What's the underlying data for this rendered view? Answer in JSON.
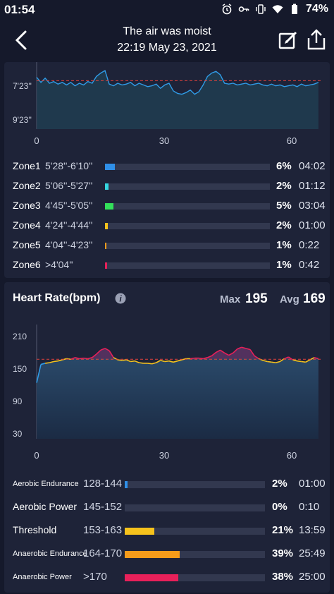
{
  "status_bar": {
    "time": "01:54",
    "battery": "74%",
    "icons": [
      "alarm-icon",
      "key-icon",
      "vibrate-icon",
      "wifi-icon",
      "battery-icon"
    ]
  },
  "header": {
    "title": "The air was moist",
    "datetime": "22:19 May 23, 2021"
  },
  "pace_chart": {
    "y_ticks": [
      "7'23''",
      "9'23''"
    ],
    "x_ticks": [
      "0",
      "30",
      "60"
    ],
    "color_line": "#2f9be6",
    "color_avg": "#e0423c",
    "chart_data": {
      "type": "area",
      "x_range": [
        0,
        67
      ],
      "x": [
        0,
        1,
        2,
        3,
        4,
        5,
        6,
        7,
        8,
        9,
        10,
        11,
        12,
        13,
        14,
        15,
        16,
        17,
        18,
        19,
        20,
        21,
        22,
        23,
        24,
        25,
        26,
        27,
        28,
        29,
        30,
        31,
        32,
        33,
        34,
        35,
        36,
        37,
        38,
        39,
        40,
        41,
        42,
        43,
        44,
        45,
        46,
        47,
        48,
        49,
        50,
        51,
        52,
        53,
        54,
        55,
        56,
        57,
        58,
        59,
        60,
        61,
        62,
        63,
        64,
        65,
        66
      ],
      "y": [
        6.3,
        6.9,
        6.4,
        7.0,
        6.8,
        7.1,
        6.9,
        7.2,
        6.9,
        7.3,
        7.0,
        7.2,
        6.8,
        7.0,
        6.2,
        5.8,
        5.5,
        7.1,
        7.3,
        7.0,
        7.2,
        7.1,
        6.9,
        7.3,
        7.0,
        7.2,
        7.4,
        7.3,
        7.1,
        7.6,
        7.2,
        7.0,
        7.9,
        8.2,
        8.3,
        8.1,
        7.8,
        8.3,
        8.0,
        7.2,
        6.2,
        5.8,
        5.6,
        6.0,
        7.0,
        7.1,
        7.0,
        7.2,
        7.1,
        7.0,
        7.2,
        7.1,
        7.0,
        7.2,
        7.3,
        7.1,
        7.3,
        7.2,
        7.4,
        7.3,
        7.2,
        7.4,
        7.1,
        7.3,
        7.2,
        7.1,
        6.9
      ],
      "avg": 6.7
    }
  },
  "pace_zones": [
    {
      "name": "Zone1",
      "range": "5'28''-6'10''",
      "pct": "6%",
      "pct_value": 6,
      "time": "04:02",
      "color": "#2f8fe8"
    },
    {
      "name": "Zone2",
      "range": "5'06''-5'27''",
      "pct": "2%",
      "pct_value": 2,
      "time": "01:12",
      "color": "#35d6e0"
    },
    {
      "name": "Zone3",
      "range": "4'45''-5'05''",
      "pct": "5%",
      "pct_value": 5,
      "time": "03:04",
      "color": "#33e05a"
    },
    {
      "name": "Zone4",
      "range": "4'24''-4'44''",
      "pct": "2%",
      "pct_value": 1.5,
      "time": "01:00",
      "color": "#f6c21c"
    },
    {
      "name": "Zone5",
      "range": "4'04''-4'23''",
      "pct": "1%",
      "pct_value": 0.6,
      "time": "0:22",
      "color": "#f59b1a"
    },
    {
      "name": "Zone6",
      "range": ">4'04''",
      "pct": "1%",
      "pct_value": 1.2,
      "time": "0:42",
      "color": "#e8205a"
    }
  ],
  "heart_rate": {
    "title": "Heart Rate(bpm)",
    "max_label": "Max",
    "max_value": "195",
    "avg_label": "Avg",
    "avg_value": "169",
    "y_ticks": [
      "210",
      "150",
      "90",
      "30"
    ],
    "x_ticks": [
      "0",
      "30",
      "60"
    ],
    "chart_data": {
      "type": "area",
      "y_range": [
        30,
        210
      ],
      "x_range": [
        0,
        67
      ],
      "x": [
        0,
        1,
        2,
        3,
        4,
        5,
        6,
        7,
        8,
        9,
        10,
        11,
        12,
        13,
        14,
        15,
        16,
        17,
        18,
        19,
        20,
        21,
        22,
        23,
        24,
        25,
        26,
        27,
        28,
        29,
        30,
        31,
        32,
        33,
        34,
        35,
        36,
        37,
        38,
        39,
        40,
        41,
        42,
        43,
        44,
        45,
        46,
        47,
        48,
        49,
        50,
        51,
        52,
        53,
        54,
        55,
        56,
        57,
        58,
        59,
        60,
        61,
        62,
        63,
        64,
        65,
        66
      ],
      "y": [
        128,
        160,
        162,
        163,
        165,
        166,
        168,
        170,
        169,
        172,
        170,
        171,
        170,
        172,
        178,
        185,
        188,
        184,
        172,
        168,
        167,
        168,
        165,
        166,
        163,
        162,
        162,
        161,
        163,
        167,
        165,
        166,
        164,
        166,
        168,
        170,
        170,
        171,
        171,
        170,
        172,
        175,
        181,
        185,
        180,
        176,
        180,
        187,
        190,
        188,
        186,
        175,
        170,
        167,
        165,
        164,
        163,
        165,
        170,
        173,
        168,
        166,
        165,
        164,
        168,
        172,
        170
      ],
      "avg": 169,
      "high_threshold": 170
    }
  },
  "hr_zones": [
    {
      "name": "Aerobic Endurance",
      "range": "128-144",
      "pct": "2%",
      "pct_value": 2,
      "time": "01:00",
      "color": "#2f8fe8",
      "big": false
    },
    {
      "name": "Aerobic Power",
      "range": "145-152",
      "pct": "0%",
      "pct_value": 0,
      "time": "0:10",
      "color": "#35d6e0",
      "big": true
    },
    {
      "name": "Threshold",
      "range": "153-163",
      "pct": "21%",
      "pct_value": 21,
      "time": "13:59",
      "color": "#f6c21c",
      "big": true
    },
    {
      "name": "Anaerobic Endurance",
      "range": "164-170",
      "pct": "39%",
      "pct_value": 39,
      "time": "25:49",
      "color": "#f59b1a",
      "big": false
    },
    {
      "name": "Anaerobic Power",
      "range": ">170",
      "pct": "38%",
      "pct_value": 38,
      "time": "25:00",
      "color": "#e8205a",
      "big": false
    }
  ]
}
